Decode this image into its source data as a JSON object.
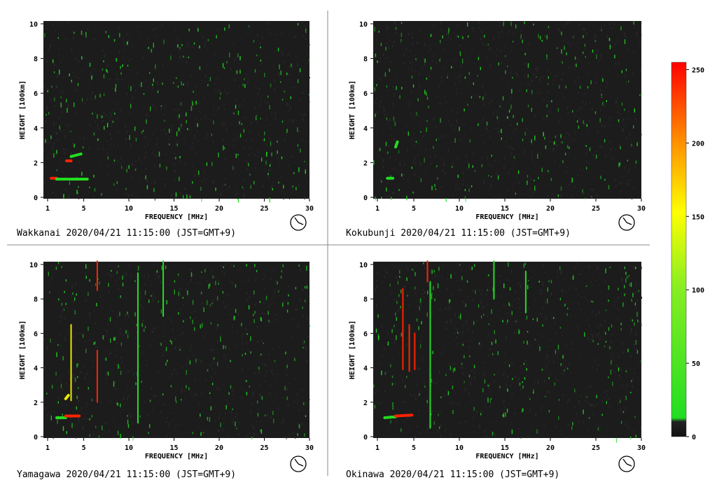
{
  "colors": {
    "background": "#1c1c1c",
    "noise": "#2e2e2e",
    "low": "#22dd22",
    "mid": "#e8e800",
    "high": "#ff2200"
  },
  "colorbar": {
    "ticks": [
      "250",
      "200",
      "150",
      "100",
      "50",
      "0"
    ],
    "range": [
      0,
      255
    ]
  },
  "chart_data": [
    {
      "type": "heatmap",
      "station": "Wakkanai",
      "caption": "Wakkanai 2020/04/21 11:15:00 (JST=GMT+9)",
      "xlabel": "FREQUENCY [MHz]",
      "ylabel": "HEIGHT [100km]",
      "xlim": [
        1,
        30
      ],
      "ylim": [
        0,
        10
      ],
      "xticks": [
        "1",
        "5",
        "10",
        "15",
        "20",
        "25",
        "30"
      ],
      "yticks": [
        "0",
        "2",
        "4",
        "6",
        "8",
        "10"
      ],
      "traces": [
        {
          "level": "high",
          "x": [
            1.4,
            2.0
          ],
          "y": [
            1.1,
            1.1
          ]
        },
        {
          "level": "low",
          "x": [
            2.0,
            5.4
          ],
          "y": [
            1.05,
            1.05
          ]
        },
        {
          "level": "high",
          "x": [
            3.1,
            3.6
          ],
          "y": [
            2.1,
            2.1
          ]
        },
        {
          "level": "low",
          "x": [
            3.6,
            4.7
          ],
          "y": [
            2.35,
            2.5
          ]
        }
      ]
    },
    {
      "type": "heatmap",
      "station": "Kokubunji",
      "caption": "Kokubunji 2020/04/21 11:15:00 (JST=GMT+9)",
      "xlabel": "FREQUENCY [MHz]",
      "ylabel": "HEIGHT [100km]",
      "xlim": [
        1,
        30
      ],
      "ylim": [
        0,
        10
      ],
      "xticks": [
        "1",
        "5",
        "10",
        "15",
        "20",
        "25",
        "30"
      ],
      "yticks": [
        "0",
        "2",
        "4",
        "6",
        "8",
        "10"
      ],
      "traces": [
        {
          "level": "low",
          "x": [
            2.1,
            2.7
          ],
          "y": [
            1.1,
            1.1
          ]
        },
        {
          "level": "low",
          "x": [
            3.0,
            3.2
          ],
          "y": [
            2.9,
            3.2
          ]
        }
      ]
    },
    {
      "type": "heatmap",
      "station": "Yamagawa",
      "caption": "Yamagawa 2020/04/21 11:15:00 (JST=GMT+9)",
      "xlabel": "FREQUENCY [MHz]",
      "ylabel": "HEIGHT [100km]",
      "xlim": [
        1,
        30
      ],
      "ylim": [
        0,
        10
      ],
      "xticks": [
        "1",
        "5",
        "10",
        "15",
        "20",
        "25",
        "30"
      ],
      "yticks": [
        "0",
        "2",
        "4",
        "6",
        "8",
        "10"
      ],
      "traces": [
        {
          "level": "low",
          "x": [
            2.0,
            3.0
          ],
          "y": [
            1.1,
            1.1
          ]
        },
        {
          "level": "high",
          "x": [
            3.0,
            4.5
          ],
          "y": [
            1.2,
            1.2
          ]
        },
        {
          "level": "mid",
          "x": [
            3.0,
            3.3
          ],
          "y": [
            2.2,
            2.4
          ]
        },
        {
          "level": "mid",
          "x": [
            3.6,
            3.6
          ],
          "y": [
            2.1,
            6.5
          ]
        },
        {
          "level": "high",
          "x": [
            6.5,
            6.5
          ],
          "y": [
            8.5,
            10.2
          ]
        },
        {
          "level": "high",
          "x": [
            6.5,
            6.5
          ],
          "y": [
            2.0,
            5.0
          ]
        },
        {
          "level": "low",
          "x": [
            11.0,
            11.0
          ],
          "y": [
            0.8,
            9.5
          ]
        },
        {
          "level": "low",
          "x": [
            13.8,
            13.8
          ],
          "y": [
            7.0,
            10.2
          ]
        }
      ]
    },
    {
      "type": "heatmap",
      "station": "Okinawa",
      "caption": "Okinawa 2020/04/21 11:15:00 (JST=GMT+9)",
      "xlabel": "FREQUENCY [MHz]",
      "ylabel": "HEIGHT [100km]",
      "xlim": [
        1,
        30
      ],
      "ylim": [
        0,
        10
      ],
      "xticks": [
        "1",
        "5",
        "10",
        "15",
        "20",
        "25",
        "30"
      ],
      "yticks": [
        "0",
        "2",
        "4",
        "6",
        "8",
        "10"
      ],
      "traces": [
        {
          "level": "low",
          "x": [
            1.8,
            3.0
          ],
          "y": [
            1.1,
            1.15
          ]
        },
        {
          "level": "high",
          "x": [
            3.0,
            4.8
          ],
          "y": [
            1.2,
            1.25
          ]
        },
        {
          "level": "high",
          "x": [
            3.8,
            3.8
          ],
          "y": [
            3.9,
            8.6
          ]
        },
        {
          "level": "high",
          "x": [
            4.5,
            4.5
          ],
          "y": [
            3.8,
            6.5
          ]
        },
        {
          "level": "high",
          "x": [
            5.1,
            5.1
          ],
          "y": [
            3.9,
            6.0
          ]
        },
        {
          "level": "high",
          "x": [
            6.5,
            6.5
          ],
          "y": [
            9.0,
            10.2
          ]
        },
        {
          "level": "low",
          "x": [
            6.8,
            6.8
          ],
          "y": [
            0.5,
            9.0
          ]
        },
        {
          "level": "low",
          "x": [
            13.8,
            13.8
          ],
          "y": [
            8.0,
            10.2
          ]
        },
        {
          "level": "low",
          "x": [
            17.3,
            17.3
          ],
          "y": [
            7.2,
            9.6
          ]
        }
      ]
    }
  ]
}
